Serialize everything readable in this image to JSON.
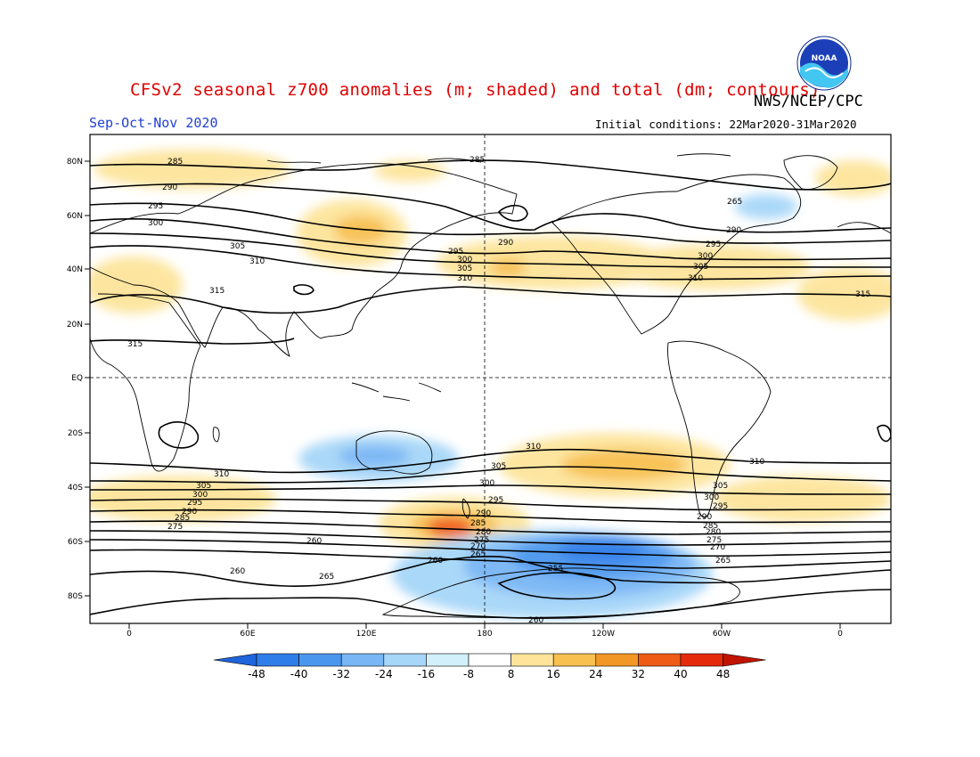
{
  "header": {
    "title": "CFSv2 seasonal z700 anomalies (m; shaded) and total (dm; contours)",
    "agency": "NWS/NCEP/CPC",
    "season": "Sep-Oct-Nov 2020",
    "initial_conditions": "Initial conditions: 22Mar2020-31Mar2020",
    "logo_text": "NOAA"
  },
  "map": {
    "lat_ticks": [
      "80N",
      "60N",
      "40N",
      "20N",
      "EQ",
      "20S",
      "40S",
      "60S",
      "80S"
    ],
    "lon_ticks": [
      "0",
      "60E",
      "120E",
      "180",
      "120W",
      "60W",
      "0"
    ],
    "contour_labels": {
      "nh": [
        "285",
        "290",
        "295",
        "300",
        "305",
        "310",
        "315"
      ],
      "nh_extra": [
        "265"
      ],
      "sh": [
        "310",
        "305",
        "300",
        "295",
        "290",
        "285",
        "280",
        "275",
        "270",
        "265",
        "260",
        "255"
      ]
    }
  },
  "colorbar": {
    "ticks": [
      "-48",
      "-40",
      "-32",
      "-24",
      "-16",
      "-8",
      "8",
      "16",
      "24",
      "32",
      "40",
      "48"
    ],
    "colors": [
      "#1e64dc",
      "#2f7de8",
      "#4a96ee",
      "#78b6f5",
      "#a6d6f8",
      "#d2f0fb",
      "#ffffff",
      "#fde49a",
      "#f8c04f",
      "#f29726",
      "#ef5a14",
      "#e52a0c",
      "#c11400"
    ]
  },
  "chart_data": {
    "type": "heatmap",
    "title": "CFSv2 seasonal z700 anomalies (m; shaded) and total (dm; contours)",
    "subtitle": "Sep-Oct-Nov 2020",
    "variable": "700 hPa geopotential height",
    "units_shaded": "m",
    "units_contours": "dm",
    "shading_levels": [
      -48,
      -40,
      -32,
      -24,
      -16,
      -8,
      8,
      16,
      24,
      32,
      40,
      48
    ],
    "contour_levels_dm": [
      255,
      260,
      265,
      270,
      275,
      280,
      285,
      290,
      295,
      300,
      305,
      310,
      315
    ],
    "lat_range": [
      -90,
      90
    ],
    "lon_range": [
      -20,
      380
    ]
  }
}
